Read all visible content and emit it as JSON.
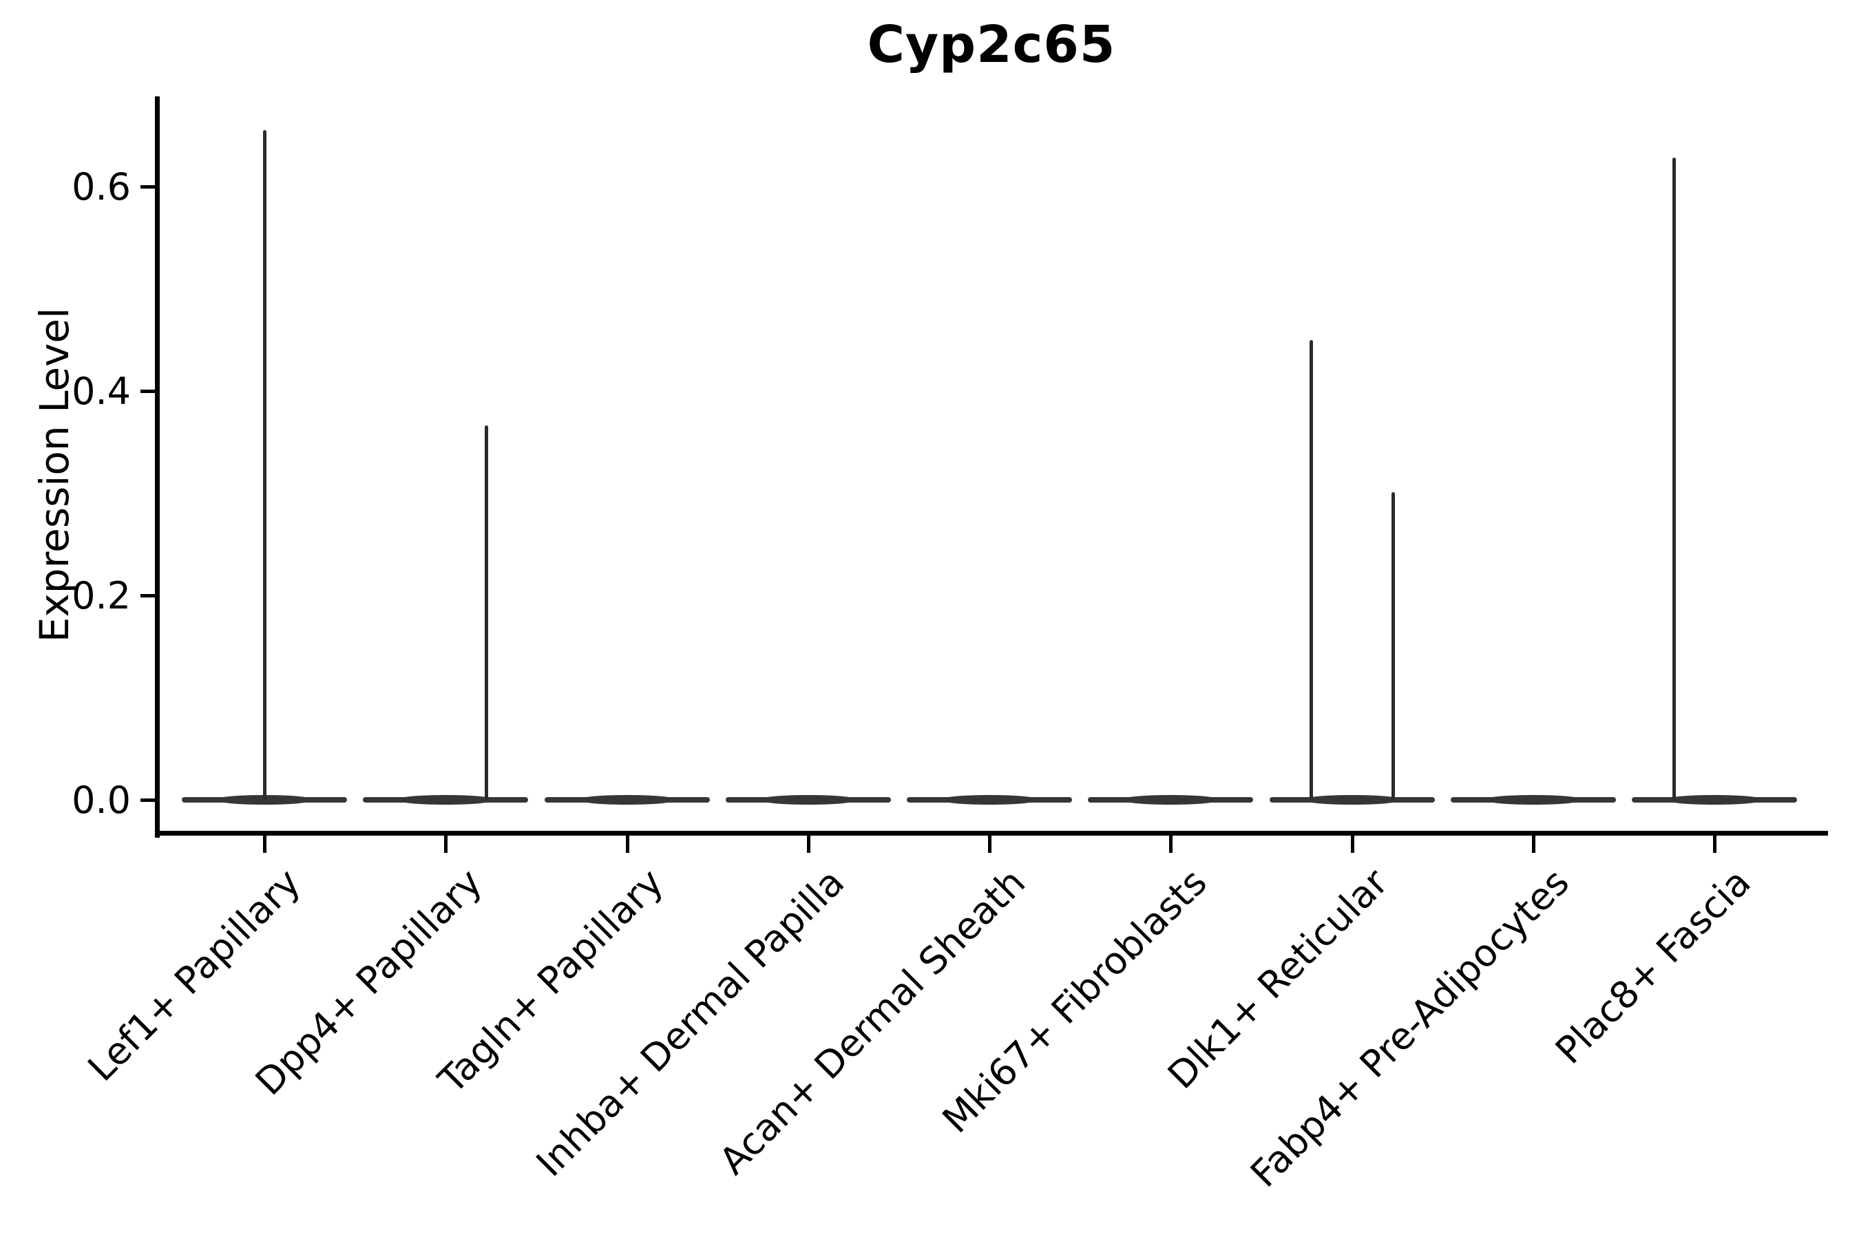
{
  "chart_data": {
    "type": "violin",
    "title": "Cyp2c65",
    "ylabel": "Expression Level",
    "xlabel": "",
    "grid": false,
    "legend": false,
    "ylim": [
      -0.032,
      0.688
    ],
    "yticks": [
      {
        "label": "0.0",
        "value": 0.0
      },
      {
        "label": "0.2",
        "value": 0.2
      },
      {
        "label": "0.4",
        "value": 0.4
      },
      {
        "label": "0.6",
        "value": 0.6
      }
    ],
    "categories": [
      "Lef1+ Papillary",
      "Dpp4+ Papillary",
      "Tagln+ Papillary",
      "Inhba+ Dermal Papilla",
      "Acan+ Dermal Sheath",
      "Mki67+ Fibroblasts",
      "Dlk1+ Reticular",
      "Fabp4+ Pre-Adipocytes",
      "Plac8+ Fascia"
    ],
    "violins": [
      {
        "label": "Lef1+ Papillary",
        "baseline_value": 0.0,
        "max_expression": 0.655,
        "spikes": [
          {
            "offset_frac": 0.0,
            "value": 0.655
          }
        ]
      },
      {
        "label": "Dpp4+ Papillary",
        "baseline_value": 0.0,
        "max_expression": 0.366,
        "spikes": [
          {
            "offset_frac": 0.224,
            "value": 0.366
          }
        ]
      },
      {
        "label": "Tagln+ Papillary",
        "baseline_value": 0.0,
        "max_expression": 0.0,
        "spikes": []
      },
      {
        "label": "Inhba+ Dermal Papilla",
        "baseline_value": 0.0,
        "max_expression": 0.0,
        "spikes": []
      },
      {
        "label": "Acan+ Dermal Sheath",
        "baseline_value": 0.0,
        "max_expression": 0.0,
        "spikes": []
      },
      {
        "label": "Mki67+ Fibroblasts",
        "baseline_value": 0.0,
        "max_expression": 0.0,
        "spikes": []
      },
      {
        "label": "Dlk1+ Reticular",
        "baseline_value": 0.0,
        "max_expression": 0.45,
        "spikes": [
          {
            "offset_frac": -0.224,
            "value": 0.45
          },
          {
            "offset_frac": 0.228,
            "value": 0.301
          }
        ]
      },
      {
        "label": "Fabp4+ Pre-Adipocytes",
        "baseline_value": 0.0,
        "max_expression": 0.0,
        "spikes": []
      },
      {
        "label": "Plac8+ Fascia",
        "baseline_value": 0.0,
        "max_expression": 0.628,
        "spikes": [
          {
            "offset_frac": -0.224,
            "value": 0.628
          }
        ]
      }
    ],
    "colors": {
      "axis": "#000000",
      "violin": "#363636",
      "spike": "#2b2b2b",
      "background": "#ffffff"
    }
  }
}
